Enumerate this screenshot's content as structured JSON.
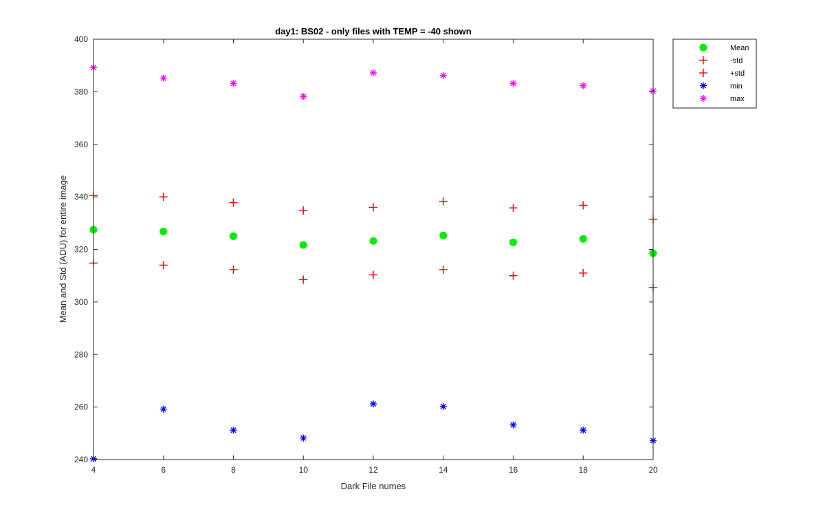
{
  "chart_data": {
    "type": "scatter",
    "title": "day1: BS02 - only files with TEMP = -40 shown",
    "xlabel": "Dark File numes",
    "ylabel": "Mean and Std (ADU) for entire image",
    "xlim": [
      4,
      20
    ],
    "ylim": [
      240,
      400
    ],
    "xticks": [
      4,
      6,
      8,
      10,
      12,
      14,
      16,
      18,
      20
    ],
    "yticks": [
      240,
      260,
      280,
      300,
      320,
      340,
      360,
      380,
      400
    ],
    "grid": false,
    "legend_position": "outside top-right",
    "x": [
      4,
      6,
      8,
      10,
      12,
      14,
      16,
      18,
      20
    ],
    "series": [
      {
        "name": "Mean",
        "marker": "filled-circle",
        "color": "#00ee00",
        "values": [
          327.5,
          326.8,
          325.0,
          321.7,
          323.2,
          325.3,
          322.7,
          324.0,
          318.5
        ]
      },
      {
        "name": "-std",
        "marker": "plus",
        "color": "#ff0000",
        "values": [
          314.8,
          314.0,
          312.3,
          308.5,
          310.3,
          312.3,
          310.0,
          311.0,
          305.5
        ]
      },
      {
        "name": "+std",
        "marker": "plus",
        "color": "#ff0000",
        "values": [
          340.5,
          340.0,
          337.8,
          334.8,
          336.0,
          338.3,
          335.8,
          336.8,
          331.5
        ]
      },
      {
        "name": "min",
        "marker": "asterisk",
        "color": "#0000ff",
        "values": [
          240.3,
          259.2,
          251.2,
          248.2,
          261.2,
          260.2,
          253.2,
          251.2,
          247.2
        ]
      },
      {
        "name": "max",
        "marker": "asterisk",
        "color": "#ff00ff",
        "values": [
          389.2,
          385.2,
          383.2,
          378.2,
          387.2,
          386.2,
          383.2,
          382.3,
          380.3
        ]
      }
    ]
  }
}
